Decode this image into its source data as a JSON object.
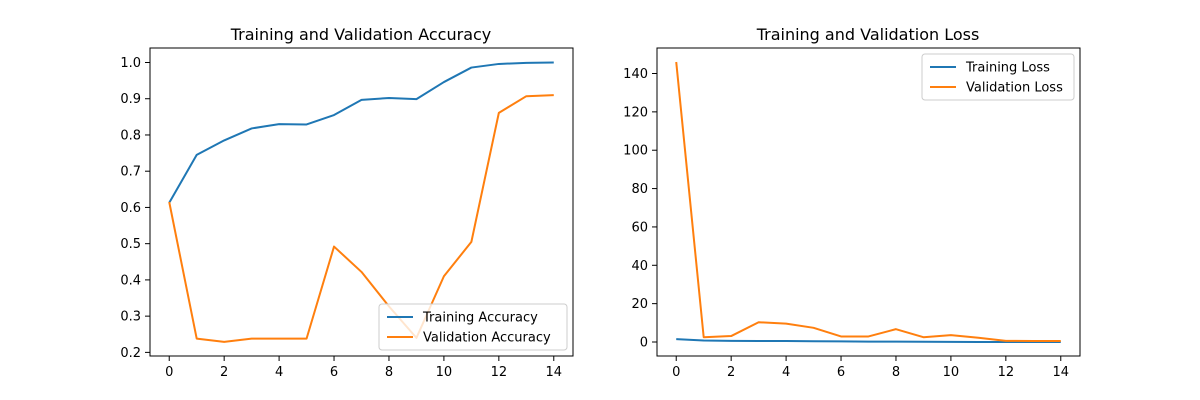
{
  "chart_data": [
    {
      "type": "line",
      "title": "Training and Validation Accuracy",
      "xlabel": "",
      "ylabel": "",
      "x": [
        0,
        1,
        2,
        3,
        4,
        5,
        6,
        7,
        8,
        9,
        10,
        11,
        12,
        13,
        14
      ],
      "xlim": [
        -0.7,
        14.7
      ],
      "ylim": [
        0.19,
        1.04
      ],
      "xticks": [
        0,
        2,
        4,
        6,
        8,
        10,
        12,
        14
      ],
      "yticks": [
        0.2,
        0.3,
        0.4,
        0.5,
        0.6,
        0.7,
        0.8,
        0.9,
        1.0
      ],
      "ytick_labels": [
        "0.2",
        "0.3",
        "0.4",
        "0.5",
        "0.6",
        "0.7",
        "0.8",
        "0.9",
        "1.0"
      ],
      "grid": false,
      "legend_position": "lower-right",
      "series": [
        {
          "name": "Training Accuracy",
          "color": "#1f77b4",
          "values": [
            0.613,
            0.745,
            0.785,
            0.818,
            0.83,
            0.829,
            0.855,
            0.897,
            0.902,
            0.899,
            0.946,
            0.986,
            0.996,
            0.999,
            1.0
          ]
        },
        {
          "name": "Validation Accuracy",
          "color": "#ff7f0e",
          "values": [
            0.615,
            0.238,
            0.229,
            0.238,
            0.238,
            0.238,
            0.492,
            0.422,
            0.327,
            0.24,
            0.41,
            0.505,
            0.861,
            0.907,
            0.91
          ]
        }
      ]
    },
    {
      "type": "line",
      "title": "Training and Validation Loss",
      "xlabel": "",
      "ylabel": "",
      "x": [
        0,
        1,
        2,
        3,
        4,
        5,
        6,
        7,
        8,
        9,
        10,
        11,
        12,
        13,
        14
      ],
      "xlim": [
        -0.7,
        14.7
      ],
      "ylim": [
        -7.3,
        153.3
      ],
      "xticks": [
        0,
        2,
        4,
        6,
        8,
        10,
        12,
        14
      ],
      "yticks": [
        0,
        20,
        40,
        60,
        80,
        100,
        120,
        140
      ],
      "ytick_labels": [
        "0",
        "20",
        "40",
        "60",
        "80",
        "100",
        "120",
        "140"
      ],
      "grid": false,
      "legend_position": "upper-right",
      "series": [
        {
          "name": "Training Loss",
          "color": "#1f77b4",
          "values": [
            1.5,
            0.8,
            0.6,
            0.5,
            0.5,
            0.4,
            0.3,
            0.2,
            0.2,
            0.1,
            0.05,
            0.03,
            0.02,
            0.01,
            0.01
          ]
        },
        {
          "name": "Validation Loss",
          "color": "#ff7f0e",
          "values": [
            146.0,
            2.5,
            3.1,
            10.3,
            9.6,
            7.4,
            2.9,
            2.9,
            6.7,
            2.5,
            3.6,
            2.2,
            0.6,
            0.5,
            0.5
          ]
        }
      ]
    }
  ]
}
